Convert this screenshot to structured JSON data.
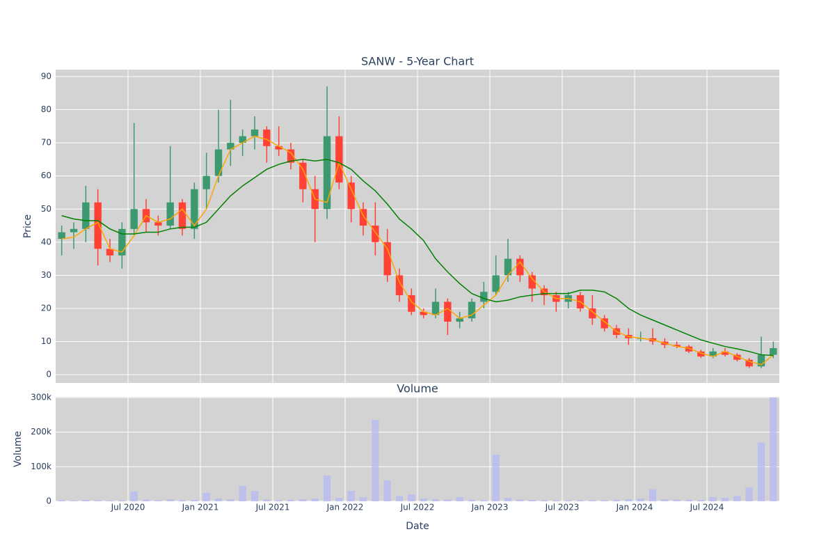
{
  "chart_data": [
    {
      "type": "candlestick",
      "title": "SANW - 5-Year Chart",
      "y_label": "Price",
      "x": [
        "2020-01",
        "2020-02",
        "2020-03",
        "2020-04",
        "2020-05",
        "2020-06",
        "2020-07",
        "2020-08",
        "2020-09",
        "2020-10",
        "2020-11",
        "2020-12",
        "2021-01",
        "2021-02",
        "2021-03",
        "2021-04",
        "2021-05",
        "2021-06",
        "2021-07",
        "2021-08",
        "2021-09",
        "2021-10",
        "2021-11",
        "2021-12",
        "2022-01",
        "2022-02",
        "2022-03",
        "2022-04",
        "2022-05",
        "2022-06",
        "2022-07",
        "2022-08",
        "2022-09",
        "2022-10",
        "2022-11",
        "2022-12",
        "2023-01",
        "2023-02",
        "2023-03",
        "2023-04",
        "2023-05",
        "2023-06",
        "2023-07",
        "2023-08",
        "2023-09",
        "2023-10",
        "2023-11",
        "2023-12",
        "2024-01",
        "2024-02",
        "2024-03",
        "2024-04",
        "2024-05",
        "2024-06",
        "2024-07",
        "2024-08",
        "2024-09",
        "2024-10",
        "2024-11",
        "2024-12"
      ],
      "open": [
        41,
        43,
        44,
        52,
        38,
        36,
        44,
        50,
        46,
        45,
        52,
        44,
        56,
        60,
        68,
        70,
        72,
        74,
        69,
        68,
        64,
        56,
        50,
        72,
        58,
        50,
        45,
        40,
        30,
        24,
        19,
        18,
        22,
        16,
        17,
        22,
        25,
        30,
        35,
        30,
        26,
        24,
        22,
        24,
        20,
        17,
        14,
        12,
        11,
        11,
        10,
        9,
        8.5,
        7,
        5.5,
        7,
        6,
        4.5,
        2.5,
        6
      ],
      "high": [
        45,
        46,
        57,
        56,
        41,
        46,
        76,
        53,
        48,
        69,
        53,
        58,
        67,
        80,
        83,
        74,
        78,
        75,
        75,
        70,
        65,
        60,
        87,
        78,
        60,
        52,
        52,
        44,
        32,
        26,
        20,
        26,
        23,
        19,
        23,
        28,
        36,
        41,
        36,
        31,
        27,
        25,
        25,
        25,
        24,
        18,
        15,
        14,
        13,
        14,
        11,
        10,
        9,
        7.5,
        8,
        8,
        6.5,
        5,
        11.5,
        10
      ],
      "low": [
        36,
        38,
        40,
        33,
        34,
        32,
        42,
        43,
        42,
        44,
        42,
        41,
        50,
        58,
        63,
        66,
        68,
        64,
        66,
        62,
        52,
        40,
        47,
        56,
        46,
        42,
        36,
        28,
        22,
        18,
        17,
        17,
        12,
        14,
        16,
        20,
        24,
        28,
        28,
        22,
        21,
        19,
        20,
        19,
        15,
        13,
        11,
        9,
        10,
        9,
        8,
        8,
        6.5,
        5,
        5,
        5.5,
        4,
        2,
        2,
        5
      ],
      "close": [
        43,
        44,
        52,
        38,
        36,
        44,
        50,
        46,
        45,
        52,
        44,
        56,
        60,
        68,
        70,
        72,
        74,
        69,
        68,
        64,
        56,
        50,
        72,
        58,
        50,
        45,
        40,
        30,
        24,
        19,
        18,
        22,
        16,
        17,
        22,
        25,
        30,
        35,
        30,
        26,
        24,
        22,
        24,
        20,
        17,
        14,
        12,
        11,
        11,
        10,
        9,
        8.5,
        7,
        5.5,
        7,
        6,
        4.5,
        2.5,
        6,
        8
      ],
      "increasing_color": "#3d9970",
      "decreasing_color": "#ff4136",
      "series": [
        {
          "color": "#ffa500",
          "values": [
            41,
            41.5,
            44,
            46,
            38,
            37,
            42,
            48,
            46,
            47,
            50,
            45,
            50,
            60,
            68,
            70,
            72,
            71,
            69,
            67,
            62,
            53,
            52,
            64,
            56,
            48,
            43,
            38,
            28,
            22,
            19,
            18,
            20,
            17,
            18,
            21,
            24,
            30,
            34,
            29,
            25,
            23,
            23,
            22,
            19,
            16,
            13,
            11.5,
            11,
            10.5,
            9.5,
            8.5,
            8,
            6.5,
            5.5,
            7,
            5.5,
            4,
            3,
            6
          ]
        },
        {
          "color": "#008000",
          "values": [
            48,
            47,
            46.5,
            46.5,
            44,
            42.5,
            42.5,
            43,
            43,
            44,
            44.5,
            44.5,
            46,
            50,
            54,
            57,
            59.5,
            62,
            63.5,
            64.5,
            65,
            64.5,
            65,
            64,
            62,
            58.5,
            55.5,
            51.5,
            47,
            44,
            40.5,
            35,
            31,
            27.5,
            24.5,
            23,
            22,
            22.5,
            23.5,
            24,
            24.5,
            24.5,
            24.5,
            25.5,
            25.5,
            25,
            23,
            20,
            18,
            16.5,
            15,
            13.5,
            12,
            10.5,
            9.5,
            8.5,
            7.8,
            7,
            6,
            5.8
          ]
        }
      ],
      "xlim": [
        "2020-01",
        "2025-01"
      ],
      "ylim": [
        -2.5,
        92.1
      ],
      "yticks": [
        0,
        10,
        20,
        30,
        40,
        50,
        60,
        70,
        80,
        90
      ],
      "grid": true,
      "background": "#d3d3d3"
    },
    {
      "type": "bar",
      "title": "Volume",
      "y_label": "Volume",
      "x_label": "Date",
      "color": "#b8bcf0",
      "values": [
        3000,
        2000,
        4000,
        3000,
        2000,
        3000,
        28000,
        5000,
        3000,
        6000,
        3000,
        4000,
        25000,
        8000,
        6000,
        45000,
        30000,
        5000,
        3000,
        4000,
        6000,
        8000,
        75000,
        10000,
        30000,
        12000,
        235000,
        60000,
        15000,
        20000,
        8000,
        6000,
        5000,
        12000,
        4000,
        3000,
        135000,
        10000,
        5000,
        4000,
        3000,
        3000,
        3000,
        3000,
        3000,
        3000,
        4000,
        6000,
        8000,
        35000,
        6000,
        5000,
        4000,
        4000,
        12000,
        10000,
        15000,
        40000,
        170000,
        300000
      ],
      "xticks": [
        {
          "value": "2020-07",
          "label": "Jul 2020"
        },
        {
          "value": "2021-01",
          "label": "Jan 2021"
        },
        {
          "value": "2021-07",
          "label": "Jul 2021"
        },
        {
          "value": "2022-01",
          "label": "Jan 2022"
        },
        {
          "value": "2022-07",
          "label": "Jul 2022"
        },
        {
          "value": "2023-01",
          "label": "Jan 2023"
        },
        {
          "value": "2023-07",
          "label": "Jul 2023"
        },
        {
          "value": "2024-01",
          "label": "Jan 2024"
        },
        {
          "value": "2024-07",
          "label": "Jul 2024"
        }
      ],
      "ylim": [
        0,
        302000
      ],
      "yticks": [
        0,
        {
          "value": 100000,
          "label": "100k"
        },
        {
          "value": 200000,
          "label": "200k"
        },
        {
          "value": 300000,
          "label": "300k"
        }
      ],
      "grid": true,
      "background": "#d3d3d3"
    }
  ]
}
